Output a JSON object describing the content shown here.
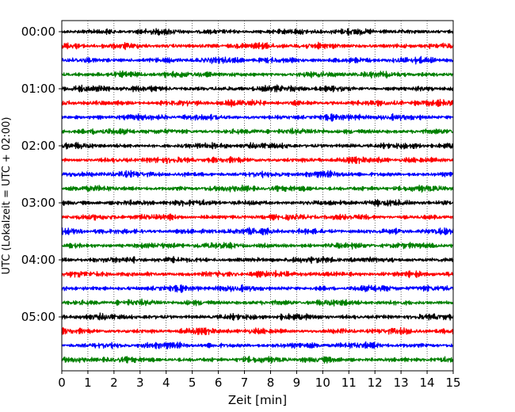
{
  "chart_data": {
    "type": "line",
    "title": "",
    "xlabel": "Zeit  [min]",
    "ylabel": "UTC (Lokalzeit = UTC + 02:00)",
    "xlim": [
      0,
      15
    ],
    "x_ticks": [
      "0",
      "1",
      "2",
      "3",
      "4",
      "5",
      "6",
      "7",
      "8",
      "9",
      "10",
      "11",
      "12",
      "13",
      "14",
      "15"
    ],
    "y_ticks": [
      "00:00",
      "01:00",
      "02:00",
      "03:00",
      "04:00",
      "05:00"
    ],
    "grid": "vertical dotted at each minute",
    "trace_interval_min": 15,
    "trace_count": 24,
    "trace_colors": [
      "#000000",
      "#ff0000",
      "#0000ff",
      "#008000"
    ],
    "trace_start_times": [
      "00:00",
      "00:15",
      "00:30",
      "00:45",
      "01:00",
      "01:15",
      "01:30",
      "01:45",
      "02:00",
      "02:15",
      "02:30",
      "02:45",
      "03:00",
      "03:15",
      "03:30",
      "03:45",
      "04:00",
      "04:15",
      "04:30",
      "04:45",
      "05:00",
      "05:15",
      "05:30",
      "05:45"
    ]
  }
}
